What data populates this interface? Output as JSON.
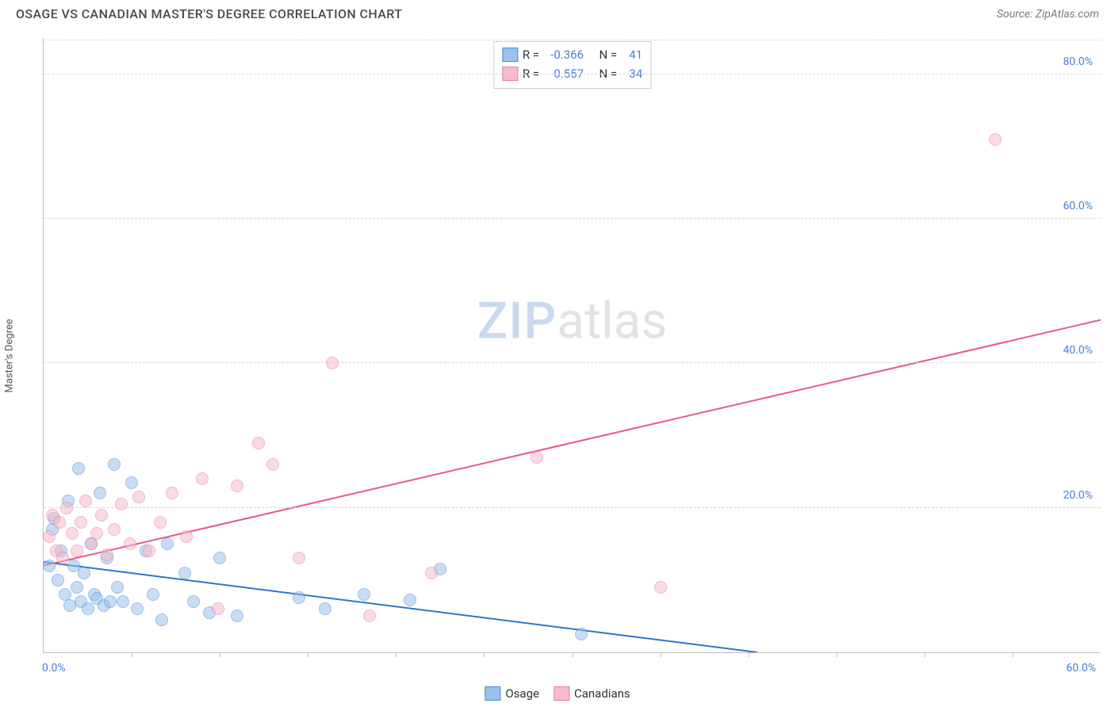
{
  "title": "OSAGE VS CANADIAN MASTER'S DEGREE CORRELATION CHART",
  "source": "Source: ZipAtlas.com",
  "watermark": {
    "part1": "ZIP",
    "part2": "atlas"
  },
  "yaxis": {
    "label": "Master's Degree"
  },
  "chart": {
    "type": "scatter",
    "xlim": [
      0,
      60
    ],
    "ylim": [
      0,
      85
    ],
    "x_tick_step": 5,
    "y_ticks": [
      20,
      40,
      60,
      80
    ],
    "y_tick_labels": [
      "20.0%",
      "40.0%",
      "60.0%",
      "80.0%"
    ],
    "x_min_label": "0.0%",
    "x_max_label": "60.0%",
    "background_color": "#ffffff",
    "grid_color": "#d9d9d9",
    "point_radius": 8,
    "point_opacity": 0.55,
    "series": [
      {
        "name": "Osage",
        "label": "Osage",
        "fill": "#9cc1ec",
        "stroke": "#4a8ad4",
        "trend_color": "#2f74d0",
        "trend": {
          "x1": 0,
          "y1": 12.5,
          "x2": 40.5,
          "y2": 0
        },
        "R": "-0.366",
        "N": "41",
        "points": [
          [
            0.3,
            12
          ],
          [
            0.5,
            17
          ],
          [
            0.6,
            18.5
          ],
          [
            0.8,
            10
          ],
          [
            1.0,
            14
          ],
          [
            1.2,
            8
          ],
          [
            1.4,
            21
          ],
          [
            1.5,
            6.5
          ],
          [
            1.7,
            12
          ],
          [
            1.9,
            9
          ],
          [
            2.0,
            25.5
          ],
          [
            2.1,
            7
          ],
          [
            2.3,
            11
          ],
          [
            2.5,
            6
          ],
          [
            2.7,
            15
          ],
          [
            2.9,
            8
          ],
          [
            3.0,
            7.5
          ],
          [
            3.2,
            22
          ],
          [
            3.4,
            6.5
          ],
          [
            3.6,
            13
          ],
          [
            3.8,
            7
          ],
          [
            4.0,
            26
          ],
          [
            4.2,
            9
          ],
          [
            4.5,
            7
          ],
          [
            5.0,
            23.5
          ],
          [
            5.3,
            6
          ],
          [
            5.8,
            14
          ],
          [
            6.2,
            8
          ],
          [
            6.7,
            4.5
          ],
          [
            7.0,
            15
          ],
          [
            8.0,
            11
          ],
          [
            8.5,
            7
          ],
          [
            9.4,
            5.5
          ],
          [
            10.0,
            13
          ],
          [
            11.0,
            5
          ],
          [
            14.5,
            7.6
          ],
          [
            16.0,
            6
          ],
          [
            18.2,
            8
          ],
          [
            20.8,
            7.2
          ],
          [
            22.5,
            11.5
          ],
          [
            30.5,
            2.5
          ]
        ]
      },
      {
        "name": "Canadians",
        "label": "Canadians",
        "fill": "#f6bccd",
        "stroke": "#e97ba0",
        "trend_color": "#e65a8a",
        "trend": {
          "x1": 0,
          "y1": 12,
          "x2": 60,
          "y2": 46
        },
        "R": "0.557",
        "N": "34",
        "points": [
          [
            0.3,
            16
          ],
          [
            0.5,
            19
          ],
          [
            0.7,
            14
          ],
          [
            0.9,
            18
          ],
          [
            1.1,
            13
          ],
          [
            1.3,
            20
          ],
          [
            1.6,
            16.5
          ],
          [
            1.9,
            14
          ],
          [
            2.1,
            18
          ],
          [
            2.4,
            21
          ],
          [
            2.7,
            15
          ],
          [
            3.0,
            16.5
          ],
          [
            3.3,
            19
          ],
          [
            3.6,
            13.5
          ],
          [
            4.0,
            17
          ],
          [
            4.4,
            20.5
          ],
          [
            4.9,
            15
          ],
          [
            5.4,
            21.5
          ],
          [
            6.0,
            14
          ],
          [
            6.6,
            18
          ],
          [
            7.3,
            22
          ],
          [
            8.1,
            16
          ],
          [
            9.0,
            24
          ],
          [
            9.9,
            6
          ],
          [
            11.0,
            23
          ],
          [
            12.2,
            29
          ],
          [
            13.0,
            26
          ],
          [
            14.5,
            13
          ],
          [
            16.4,
            40
          ],
          [
            18.5,
            5
          ],
          [
            22.0,
            11
          ],
          [
            28.0,
            27
          ],
          [
            35.0,
            9
          ],
          [
            54.0,
            71
          ]
        ]
      }
    ]
  },
  "legend": {
    "r_label": "R =",
    "n_label": "N ="
  }
}
